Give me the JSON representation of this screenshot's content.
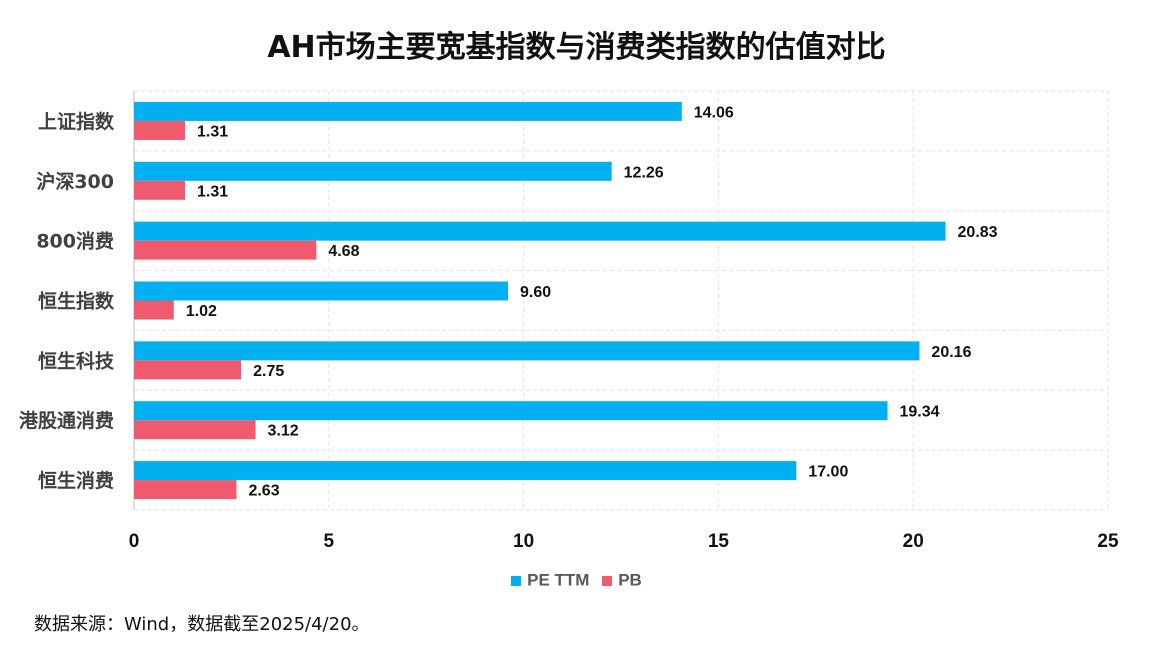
{
  "chart_data": {
    "type": "bar",
    "orientation": "horizontal",
    "title": "AH市场主要宽基指数与消费类指数的估值对比",
    "categories": [
      "上证指数",
      "沪深300",
      "800消费",
      "恒生指数",
      "恒生科技",
      "港股通消费",
      "恒生消费"
    ],
    "series": [
      {
        "name": "PE TTM",
        "color": "#00B0F0",
        "values": [
          14.06,
          12.26,
          20.83,
          9.6,
          20.16,
          19.34,
          17.0
        ]
      },
      {
        "name": "PB",
        "color": "#F05A6E",
        "values": [
          1.31,
          1.31,
          4.68,
          1.02,
          2.75,
          3.12,
          2.63
        ]
      }
    ],
    "xlim": [
      0,
      25
    ],
    "xticks": [
      0,
      5,
      10,
      15,
      20,
      25
    ],
    "grid": true,
    "legend_position": "bottom",
    "value_decimals": 2
  },
  "source_note": "数据来源：Wind，数据截至2025/4/20。"
}
